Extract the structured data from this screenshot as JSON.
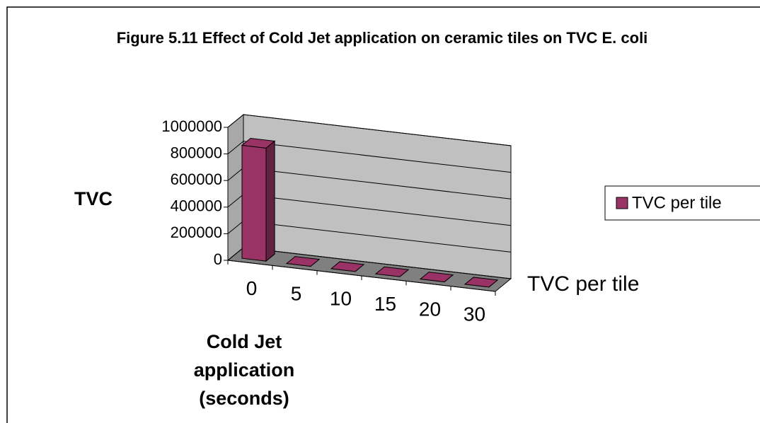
{
  "chart_data": {
    "type": "bar3d",
    "title": "Figure 5.11 Effect of Cold Jet application on ceramic tiles on TVC E. coli",
    "x_label": "Cold Jet application (seconds)",
    "y_label": "TVC",
    "categories": [
      0,
      5,
      10,
      15,
      20,
      30
    ],
    "series": [
      {
        "name": "TVC per tile",
        "color": "#993366",
        "values": [
          850000,
          0,
          0,
          0,
          0,
          0
        ]
      }
    ],
    "ylim": [
      0,
      1000000
    ],
    "yticks": [
      0,
      200000,
      400000,
      600000,
      800000,
      1000000
    ],
    "grid": true,
    "legend": "right"
  }
}
